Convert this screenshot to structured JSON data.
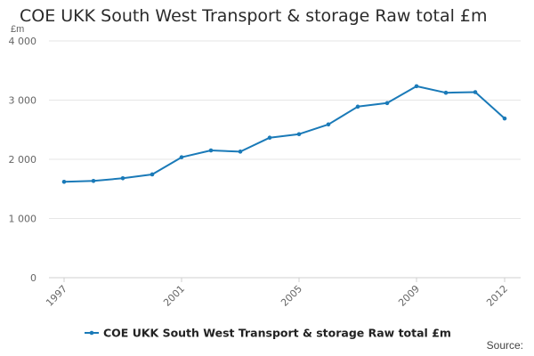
{
  "chart_data": {
    "type": "line",
    "title": "COE UKK South West Transport & storage Raw total £m",
    "ylabel": "£m",
    "xlabel": "",
    "ylim": [
      0,
      4000
    ],
    "y_ticks": [
      0,
      1000,
      2000,
      3000,
      4000
    ],
    "y_tick_labels": [
      "0",
      "1 000",
      "2 000",
      "3 000",
      "4 000"
    ],
    "x_tick_labels": [
      "1997",
      "2001",
      "2005",
      "2009",
      "2012"
    ],
    "x": [
      1997,
      1998,
      1999,
      2000,
      2001,
      2002,
      2003,
      2004,
      2005,
      2006,
      2007,
      2008,
      2009,
      2010,
      2011,
      2012
    ],
    "series": [
      {
        "name": "COE UKK South West Transport & storage Raw total £m",
        "color": "#1a7ab8",
        "values": [
          1620,
          1635,
          1680,
          1745,
          2035,
          2150,
          2130,
          2365,
          2425,
          2590,
          2890,
          2950,
          3235,
          3125,
          3135,
          2690
        ]
      }
    ],
    "grid": true,
    "legend_position": "bottom"
  },
  "source_label": "Source:"
}
